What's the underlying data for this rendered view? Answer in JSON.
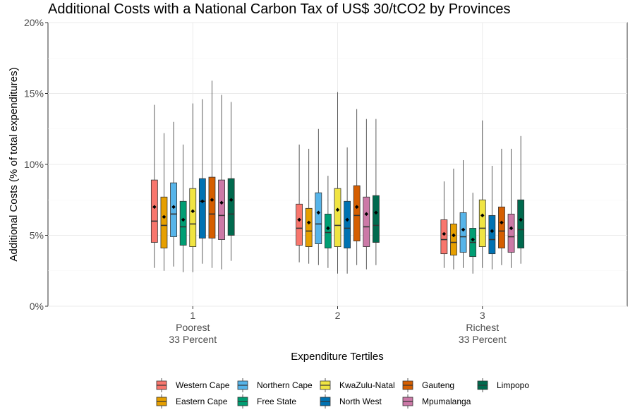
{
  "chart_data": {
    "type": "boxplot",
    "title": "Additional Costs with a National Carbon Tax of US$ 30/tCO2 by Provinces",
    "xlabel": "Expenditure Tertiles",
    "ylabel": "Additional Costs (% of total expenditures)",
    "ylim": [
      0,
      20
    ],
    "yticks": [
      0,
      5,
      10,
      15,
      20
    ],
    "ytick_labels": [
      "0%",
      "5%",
      "10%",
      "15%",
      "20%"
    ],
    "grid": true,
    "legend_position": "bottom",
    "categories": [
      {
        "label": "1",
        "sublabel": "Poorest",
        "sublabel2": "33 Percent"
      },
      {
        "label": "2",
        "sublabel": "",
        "sublabel2": ""
      },
      {
        "label": "3",
        "sublabel": "Richest",
        "sublabel2": "33 Percent"
      }
    ],
    "series": [
      {
        "name": "Western Cape",
        "color": "#F8766D",
        "boxes": [
          {
            "whisker_low": 2.7,
            "q1": 4.5,
            "median": 6.0,
            "q3": 8.9,
            "whisker_high": 14.2,
            "mean": 7.0
          },
          {
            "whisker_low": 3.1,
            "q1": 4.3,
            "median": 5.5,
            "q3": 7.2,
            "whisker_high": 11.4,
            "mean": 6.1
          },
          {
            "whisker_low": 2.7,
            "q1": 3.7,
            "median": 4.7,
            "q3": 6.1,
            "whisker_high": 8.8,
            "mean": 5.1
          }
        ]
      },
      {
        "name": "Eastern Cape",
        "color": "#E69F00",
        "boxes": [
          {
            "whisker_low": 2.5,
            "q1": 4.1,
            "median": 5.7,
            "q3": 7.7,
            "whisker_high": 12.2,
            "mean": 6.3
          },
          {
            "whisker_low": 3.0,
            "q1": 4.2,
            "median": 5.3,
            "q3": 6.9,
            "whisker_high": 11.1,
            "mean": 5.9
          },
          {
            "whisker_low": 2.6,
            "q1": 3.6,
            "median": 4.5,
            "q3": 5.8,
            "whisker_high": 9.7,
            "mean": 5.0
          }
        ]
      },
      {
        "name": "Northern Cape",
        "color": "#56B4E9",
        "boxes": [
          {
            "whisker_low": 2.8,
            "q1": 4.9,
            "median": 6.5,
            "q3": 8.7,
            "whisker_high": 13.0,
            "mean": 7.0
          },
          {
            "whisker_low": 2.9,
            "q1": 4.4,
            "median": 5.8,
            "q3": 8.0,
            "whisker_high": 12.5,
            "mean": 6.6
          },
          {
            "whisker_low": 2.7,
            "q1": 3.8,
            "median": 4.9,
            "q3": 6.6,
            "whisker_high": 10.3,
            "mean": 5.4
          }
        ]
      },
      {
        "name": "Free State",
        "color": "#009E73",
        "boxes": [
          {
            "whisker_low": 2.4,
            "q1": 4.3,
            "median": 5.6,
            "q3": 7.4,
            "whisker_high": 11.4,
            "mean": 6.1
          },
          {
            "whisker_low": 2.7,
            "q1": 4.1,
            "median": 5.2,
            "q3": 6.5,
            "whisker_high": 9.2,
            "mean": 5.5
          },
          {
            "whisker_low": 2.3,
            "q1": 3.5,
            "median": 4.5,
            "q3": 5.5,
            "whisker_high": 8.0,
            "mean": 4.7
          }
        ]
      },
      {
        "name": "KwaZulu-Natal",
        "color": "#F0E442",
        "boxes": [
          {
            "whisker_low": 2.4,
            "q1": 4.2,
            "median": 5.8,
            "q3": 8.3,
            "whisker_high": 14.3,
            "mean": 6.7
          },
          {
            "whisker_low": 2.3,
            "q1": 4.2,
            "median": 5.7,
            "q3": 8.3,
            "whisker_high": 15.1,
            "mean": 6.8
          },
          {
            "whisker_low": 2.7,
            "q1": 4.2,
            "median": 5.5,
            "q3": 7.5,
            "whisker_high": 13.1,
            "mean": 6.4
          }
        ]
      },
      {
        "name": "North West",
        "color": "#0072B2",
        "boxes": [
          {
            "whisker_low": 3.0,
            "q1": 4.8,
            "median": 7.4,
            "q3": 9.0,
            "whisker_high": 14.6,
            "mean": 7.4
          },
          {
            "whisker_low": 2.3,
            "q1": 4.1,
            "median": 5.5,
            "q3": 7.4,
            "whisker_high": 11.2,
            "mean": 6.1
          },
          {
            "whisker_low": 2.6,
            "q1": 3.7,
            "median": 4.7,
            "q3": 6.4,
            "whisker_high": 9.9,
            "mean": 5.3
          }
        ]
      },
      {
        "name": "Gauteng",
        "color": "#D55E00",
        "boxes": [
          {
            "whisker_low": 2.7,
            "q1": 4.8,
            "median": 6.5,
            "q3": 9.1,
            "whisker_high": 15.9,
            "mean": 7.5
          },
          {
            "whisker_low": 2.9,
            "q1": 4.6,
            "median": 6.4,
            "q3": 8.5,
            "whisker_high": 13.9,
            "mean": 7.0
          },
          {
            "whisker_low": 2.9,
            "q1": 4.1,
            "median": 5.3,
            "q3": 7.0,
            "whisker_high": 11.1,
            "mean": 5.9
          }
        ]
      },
      {
        "name": "Mpumalanga",
        "color": "#CC79A7",
        "boxes": [
          {
            "whisker_low": 2.6,
            "q1": 4.7,
            "median": 6.4,
            "q3": 8.9,
            "whisker_high": 14.9,
            "mean": 7.3
          },
          {
            "whisker_low": 2.6,
            "q1": 4.2,
            "median": 5.6,
            "q3": 7.7,
            "whisker_high": 13.2,
            "mean": 6.5
          },
          {
            "whisker_low": 2.7,
            "q1": 3.8,
            "median": 4.9,
            "q3": 6.5,
            "whisker_high": 11.1,
            "mean": 5.5
          }
        ]
      },
      {
        "name": "Limpopo",
        "color": "#006A4E",
        "boxes": [
          {
            "whisker_low": 3.2,
            "q1": 5.0,
            "median": 6.5,
            "q3": 9.0,
            "whisker_high": 14.4,
            "mean": 7.5
          },
          {
            "whisker_low": 2.9,
            "q1": 4.5,
            "median": 5.7,
            "q3": 7.8,
            "whisker_high": 13.2,
            "mean": 6.6
          },
          {
            "whisker_low": 3.0,
            "q1": 4.1,
            "median": 5.4,
            "q3": 7.5,
            "whisker_high": 12.0,
            "mean": 6.1
          }
        ]
      }
    ]
  }
}
